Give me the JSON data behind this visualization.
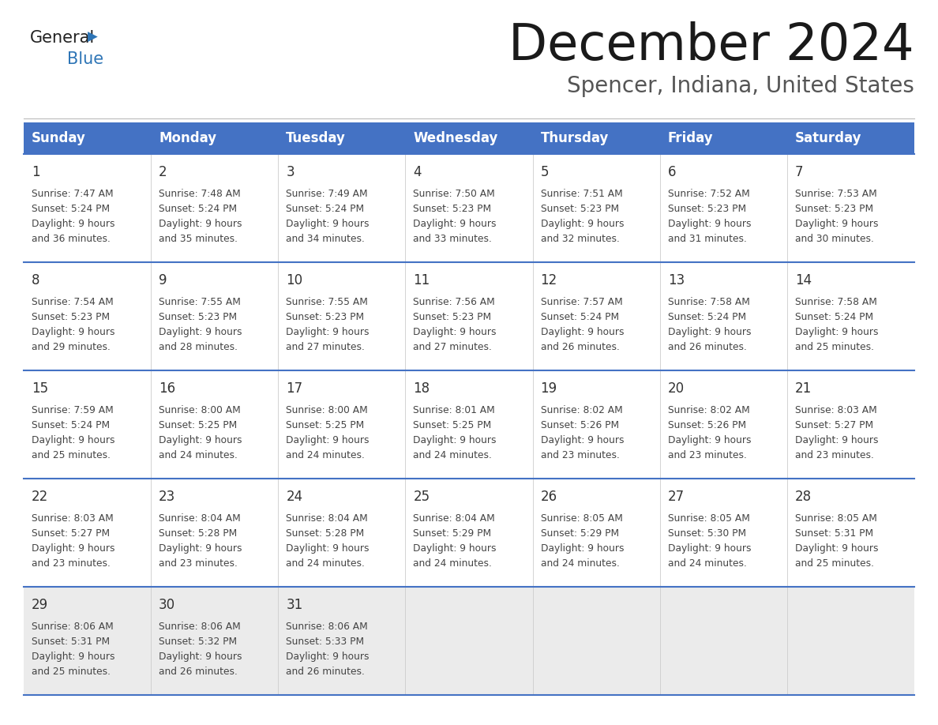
{
  "title": "December 2024",
  "subtitle": "Spencer, Indiana, United States",
  "header_color": "#4472C4",
  "header_text_color": "#FFFFFF",
  "days_of_week": [
    "Sunday",
    "Monday",
    "Tuesday",
    "Wednesday",
    "Thursday",
    "Friday",
    "Saturday"
  ],
  "bg_color": "#FFFFFF",
  "last_row_bg": "#EBEBEB",
  "cell_text_color": "#333333",
  "separator_color": "#4472C4",
  "logo_general_color": "#222222",
  "logo_blue_color": "#2E75B6",
  "title_color": "#1a1a1a",
  "subtitle_color": "#555555",
  "calendar_data": [
    [
      {
        "day": 1,
        "sunrise": "7:47 AM",
        "sunset": "5:24 PM",
        "daylight_min": "36"
      },
      {
        "day": 2,
        "sunrise": "7:48 AM",
        "sunset": "5:24 PM",
        "daylight_min": "35"
      },
      {
        "day": 3,
        "sunrise": "7:49 AM",
        "sunset": "5:24 PM",
        "daylight_min": "34"
      },
      {
        "day": 4,
        "sunrise": "7:50 AM",
        "sunset": "5:23 PM",
        "daylight_min": "33"
      },
      {
        "day": 5,
        "sunrise": "7:51 AM",
        "sunset": "5:23 PM",
        "daylight_min": "32"
      },
      {
        "day": 6,
        "sunrise": "7:52 AM",
        "sunset": "5:23 PM",
        "daylight_min": "31"
      },
      {
        "day": 7,
        "sunrise": "7:53 AM",
        "sunset": "5:23 PM",
        "daylight_min": "30"
      }
    ],
    [
      {
        "day": 8,
        "sunrise": "7:54 AM",
        "sunset": "5:23 PM",
        "daylight_min": "29"
      },
      {
        "day": 9,
        "sunrise": "7:55 AM",
        "sunset": "5:23 PM",
        "daylight_min": "28"
      },
      {
        "day": 10,
        "sunrise": "7:55 AM",
        "sunset": "5:23 PM",
        "daylight_min": "27"
      },
      {
        "day": 11,
        "sunrise": "7:56 AM",
        "sunset": "5:23 PM",
        "daylight_min": "27"
      },
      {
        "day": 12,
        "sunrise": "7:57 AM",
        "sunset": "5:24 PM",
        "daylight_min": "26"
      },
      {
        "day": 13,
        "sunrise": "7:58 AM",
        "sunset": "5:24 PM",
        "daylight_min": "26"
      },
      {
        "day": 14,
        "sunrise": "7:58 AM",
        "sunset": "5:24 PM",
        "daylight_min": "25"
      }
    ],
    [
      {
        "day": 15,
        "sunrise": "7:59 AM",
        "sunset": "5:24 PM",
        "daylight_min": "25"
      },
      {
        "day": 16,
        "sunrise": "8:00 AM",
        "sunset": "5:25 PM",
        "daylight_min": "24"
      },
      {
        "day": 17,
        "sunrise": "8:00 AM",
        "sunset": "5:25 PM",
        "daylight_min": "24"
      },
      {
        "day": 18,
        "sunrise": "8:01 AM",
        "sunset": "5:25 PM",
        "daylight_min": "24"
      },
      {
        "day": 19,
        "sunrise": "8:02 AM",
        "sunset": "5:26 PM",
        "daylight_min": "23"
      },
      {
        "day": 20,
        "sunrise": "8:02 AM",
        "sunset": "5:26 PM",
        "daylight_min": "23"
      },
      {
        "day": 21,
        "sunrise": "8:03 AM",
        "sunset": "5:27 PM",
        "daylight_min": "23"
      }
    ],
    [
      {
        "day": 22,
        "sunrise": "8:03 AM",
        "sunset": "5:27 PM",
        "daylight_min": "23"
      },
      {
        "day": 23,
        "sunrise": "8:04 AM",
        "sunset": "5:28 PM",
        "daylight_min": "23"
      },
      {
        "day": 24,
        "sunrise": "8:04 AM",
        "sunset": "5:28 PM",
        "daylight_min": "24"
      },
      {
        "day": 25,
        "sunrise": "8:04 AM",
        "sunset": "5:29 PM",
        "daylight_min": "24"
      },
      {
        "day": 26,
        "sunrise": "8:05 AM",
        "sunset": "5:29 PM",
        "daylight_min": "24"
      },
      {
        "day": 27,
        "sunrise": "8:05 AM",
        "sunset": "5:30 PM",
        "daylight_min": "24"
      },
      {
        "day": 28,
        "sunrise": "8:05 AM",
        "sunset": "5:31 PM",
        "daylight_min": "25"
      }
    ],
    [
      {
        "day": 29,
        "sunrise": "8:06 AM",
        "sunset": "5:31 PM",
        "daylight_min": "25"
      },
      {
        "day": 30,
        "sunrise": "8:06 AM",
        "sunset": "5:32 PM",
        "daylight_min": "26"
      },
      {
        "day": 31,
        "sunrise": "8:06 AM",
        "sunset": "5:33 PM",
        "daylight_min": "26"
      },
      null,
      null,
      null,
      null
    ]
  ]
}
